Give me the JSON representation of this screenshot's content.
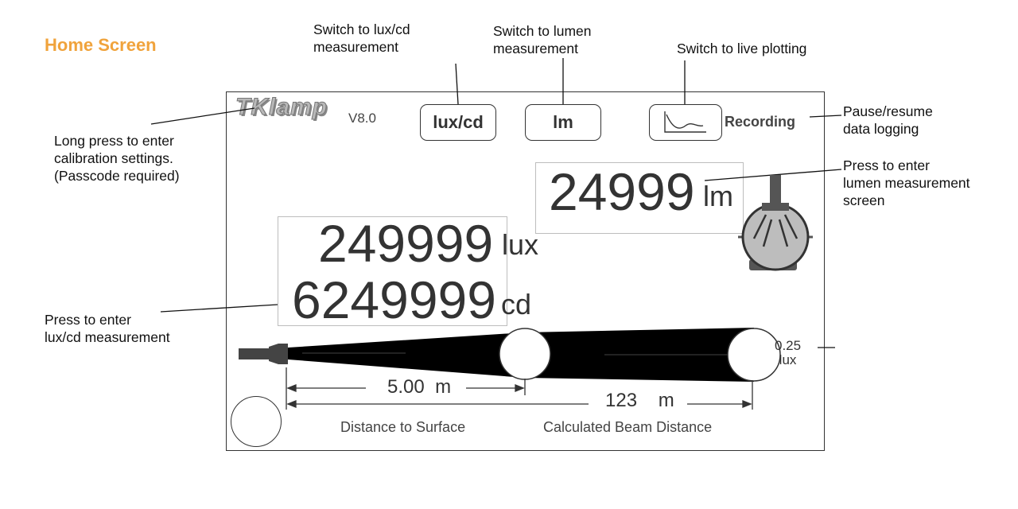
{
  "page_title": "Home Screen",
  "annotations": {
    "calibration": "Long press to enter\ncalibration settings.\n(Passcode required)",
    "switch_luxcd": "Switch to lux/cd\nmeasurement",
    "switch_lumen": "Switch to lumen\nmeasurement",
    "switch_plot": "Switch to live plotting",
    "pause_resume": "Pause/resume\ndata logging",
    "enter_lumen": "Press to enter\nlumen measurement\nscreen",
    "enter_luxcd": "Press to enter\nlux/cd measurement"
  },
  "device": {
    "logo": "TKlamp",
    "version": "V8.0",
    "buttons": {
      "luxcd": "lux/cd",
      "lm": "lm",
      "plot_icon": "line-chart-icon"
    },
    "recording": "Recording",
    "lumen": {
      "value": "24999",
      "unit": "lm"
    },
    "lux": {
      "value": "249999",
      "unit": "lux"
    },
    "cd": {
      "value": "6249999",
      "unit": "cd"
    },
    "beam": {
      "threshold_value": "0.25",
      "threshold_unit": "lux",
      "surface_distance": "5.00",
      "surface_unit": "m",
      "beam_distance": "123",
      "beam_unit": "m"
    },
    "captions": {
      "surface": "Distance to Surface",
      "beam": "Calculated Beam Distance"
    },
    "icons": {
      "sphere": "integrating-sphere-icon",
      "flashlight": "flashlight-icon",
      "home": "home-button-icon"
    }
  },
  "colors": {
    "title": "#f0a33c",
    "beam": "#000000",
    "sphere": "#bdbdbd"
  }
}
